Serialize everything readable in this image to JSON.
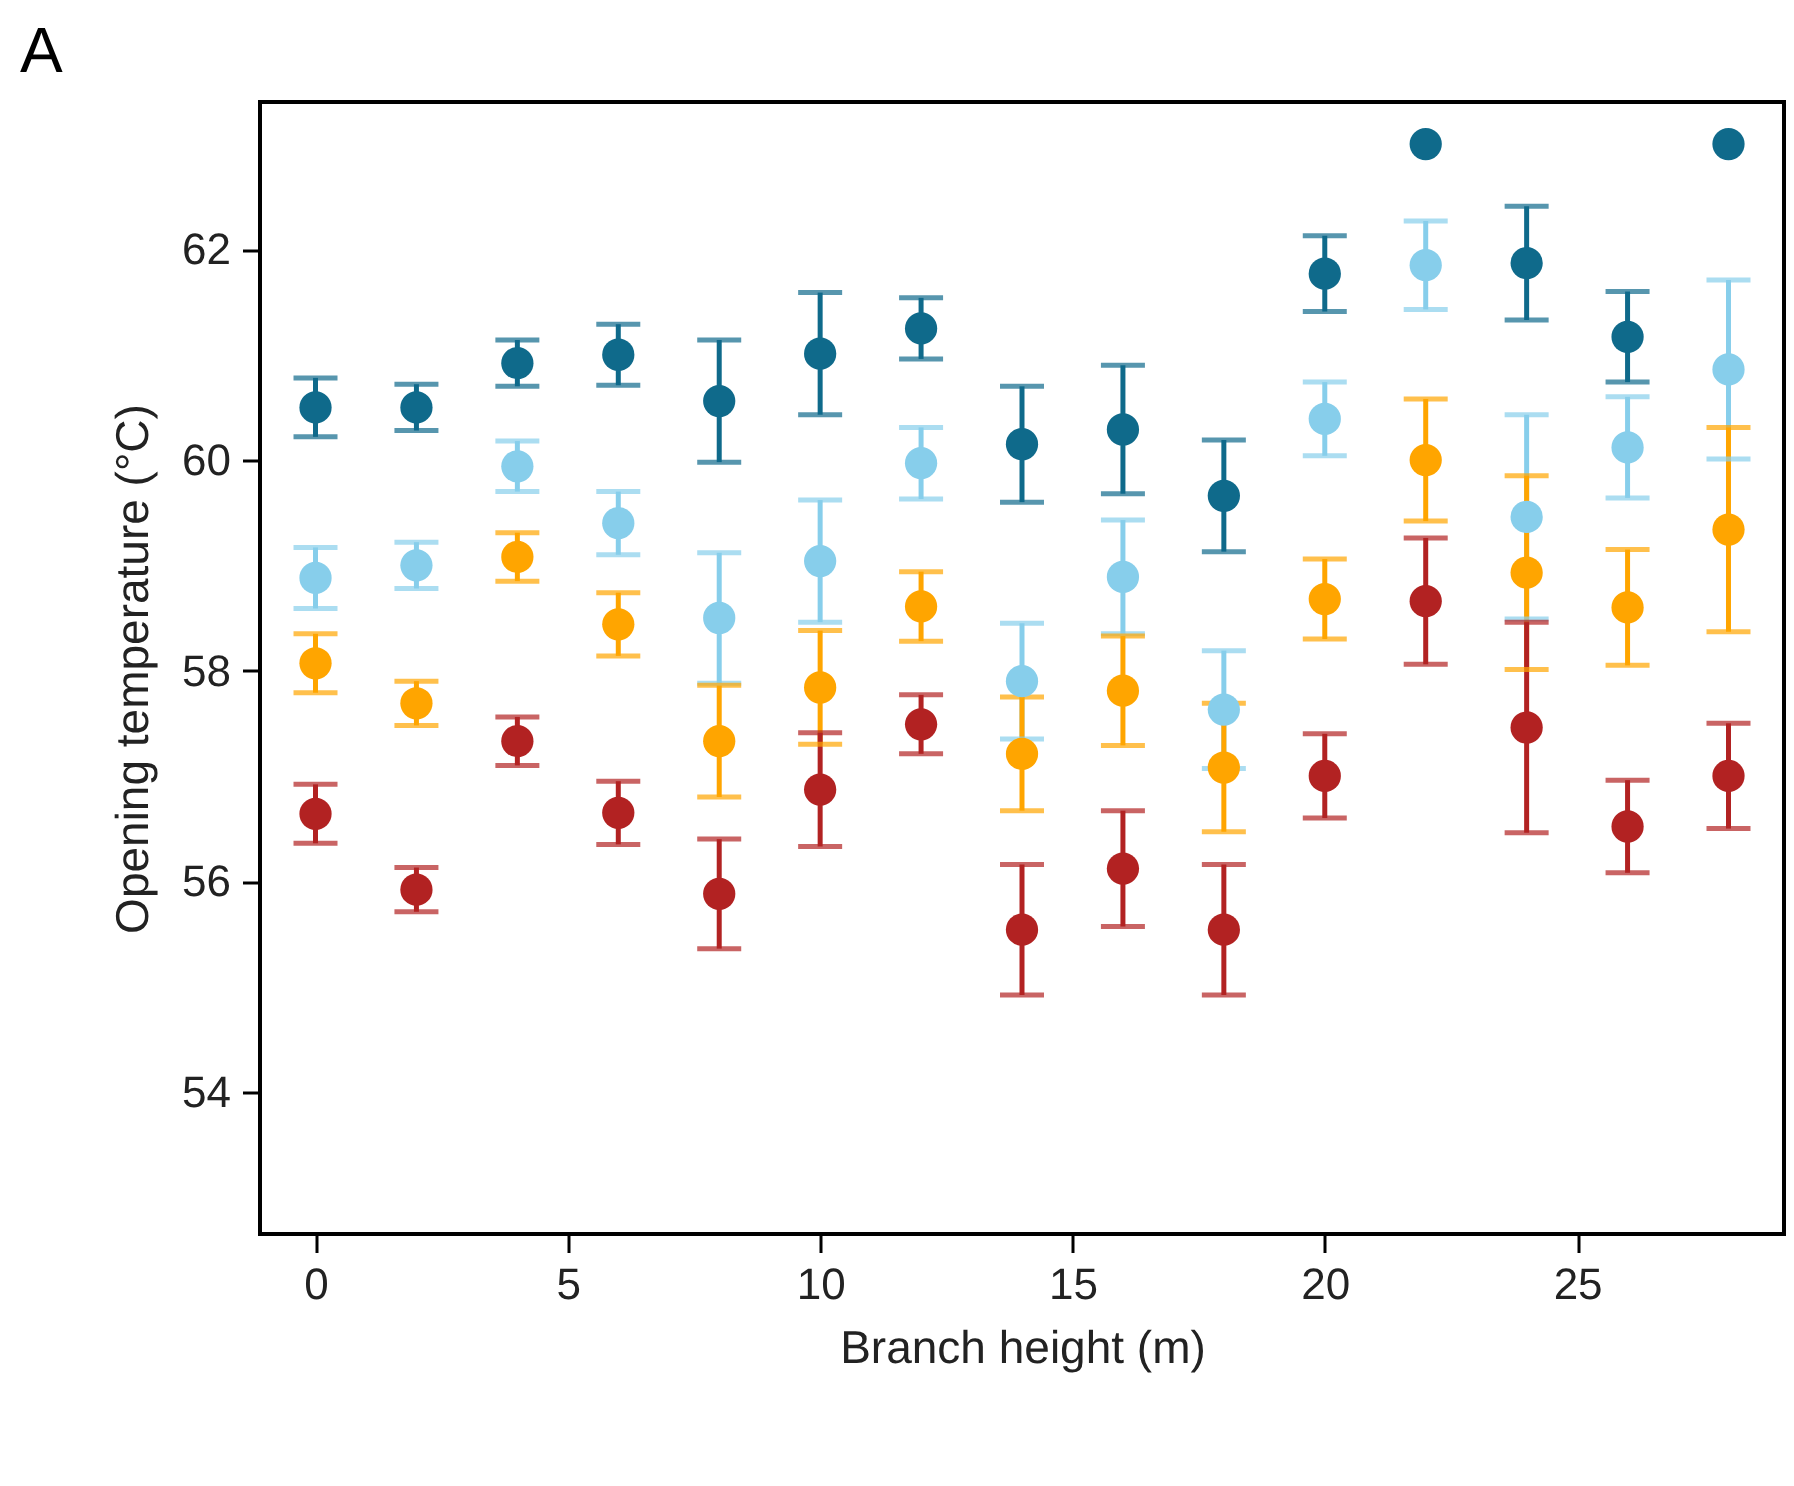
{
  "chart_data": {
    "type": "scatter",
    "xlabel": "Branch height (m)",
    "ylabel": "Opening temperature (°C)",
    "annotations": [
      "A"
    ],
    "x": [
      0,
      2,
      4,
      6,
      8,
      10,
      12,
      14,
      16,
      18,
      20,
      22,
      24,
      26,
      28
    ],
    "xlim": [
      -1.1,
      29.1
    ],
    "xticks": [
      0,
      5,
      10,
      15,
      20,
      25
    ],
    "ylim": [
      52.65,
      63.4
    ],
    "yticks": [
      54,
      56,
      58,
      60,
      62
    ],
    "grid": false,
    "legend": false,
    "marker": "circle",
    "series": [
      {
        "color": "#0f6a8b",
        "values": [
          60.5,
          60.5,
          60.92,
          61.0,
          60.56,
          61.01,
          61.25,
          60.15,
          60.29,
          59.66,
          61.77,
          63.0,
          61.87,
          61.17,
          63.0
        ],
        "errors": [
          0.28,
          0.22,
          0.22,
          0.29,
          0.58,
          0.58,
          0.29,
          0.55,
          0.61,
          0.53,
          0.36,
          null,
          0.54,
          0.43,
          null
        ]
      },
      {
        "color": "#87ceeb",
        "values": [
          58.88,
          59.0,
          59.94,
          59.4,
          58.5,
          59.04,
          59.97,
          57.9,
          58.89,
          57.63,
          60.39,
          61.85,
          59.46,
          60.12,
          60.86
        ],
        "errors": [
          0.29,
          0.22,
          0.24,
          0.3,
          0.62,
          0.58,
          0.34,
          0.55,
          0.54,
          0.56,
          0.35,
          0.42,
          0.97,
          0.48,
          0.85
        ]
      },
      {
        "color": "#ffa500",
        "values": [
          58.07,
          57.69,
          59.08,
          58.44,
          57.33,
          57.84,
          58.61,
          57.21,
          57.81,
          57.08,
          58.68,
          60.0,
          58.93,
          58.6,
          59.34
        ],
        "errors": [
          0.28,
          0.21,
          0.23,
          0.3,
          0.53,
          0.54,
          0.33,
          0.54,
          0.52,
          0.61,
          0.38,
          0.58,
          0.92,
          0.55,
          0.97
        ]
      },
      {
        "color": "#b22222",
        "values": [
          56.64,
          55.92,
          57.33,
          56.65,
          55.88,
          56.87,
          57.49,
          55.54,
          56.12,
          55.54,
          57.0,
          58.66,
          57.46,
          56.52,
          57.0
        ],
        "errors": [
          0.28,
          0.21,
          0.23,
          0.3,
          0.52,
          0.54,
          0.28,
          0.62,
          0.55,
          0.62,
          0.4,
          0.6,
          1.0,
          0.44,
          0.5
        ]
      }
    ]
  }
}
